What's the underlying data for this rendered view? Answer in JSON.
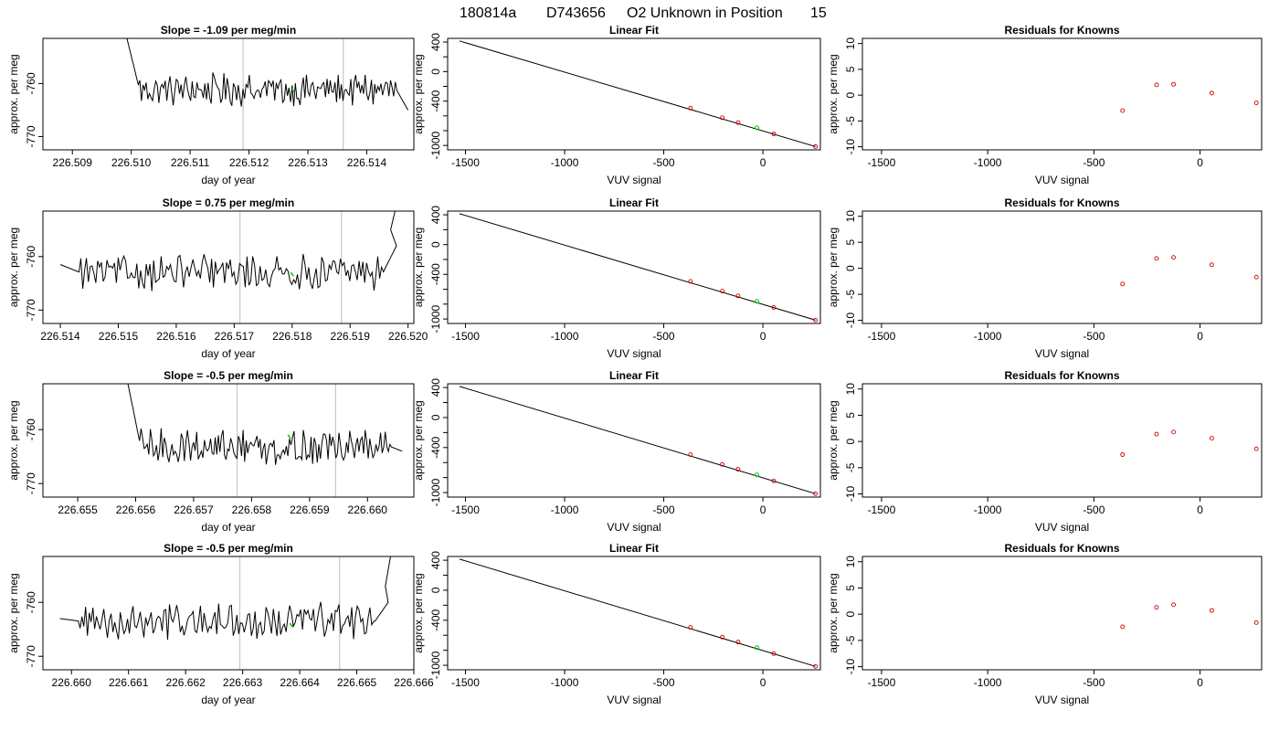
{
  "figure": {
    "suptitle_parts": [
      "180814a",
      "D743656",
      "O2 Unknown in Position",
      "15"
    ]
  },
  "colors": {
    "line": "#000000",
    "known_points": "#cc0000",
    "unknown_point": "#00cc00",
    "gate_lines": "#c8c8c8"
  },
  "chart_data": [
    {
      "type": "line",
      "row": 0,
      "panel": "time-series",
      "title": "Slope =  -1.09  per meg/min",
      "xlabel": "day of year",
      "ylabel": "approx. per meg",
      "xlim": [
        226.5085,
        226.5148
      ],
      "ylim": [
        -772.5,
        -751.5
      ],
      "xticks": [
        226.509,
        226.51,
        226.511,
        226.512,
        226.513,
        226.514
      ],
      "xtick_labels": [
        "226.509",
        "226.510",
        "226.511",
        "226.512",
        "226.513",
        "226.514"
      ],
      "yticks": [
        -770,
        -760
      ],
      "ytick_labels": [
        "-770",
        "-760"
      ],
      "vlines": [
        226.5119,
        226.5136
      ],
      "segment": {
        "x_start": 226.50985,
        "x_end": 226.5147,
        "y_start": -748,
        "y_end": -765
      },
      "mean_y": -761.2,
      "amplitude": 1.6,
      "unknown_marker": {
        "x": 226.51275,
        "y": -761.3
      }
    },
    {
      "type": "scatter",
      "row": 0,
      "panel": "linear-fit",
      "title": "Linear Fit",
      "xlabel": "VUV signal",
      "ylabel": "approx. per meg",
      "xlim": [
        -1590,
        290
      ],
      "ylim": [
        -1060,
        450
      ],
      "xticks": [
        -1500,
        -1000,
        -500,
        0
      ],
      "xtick_labels": [
        "-1500",
        "-1000",
        "-500",
        "0"
      ],
      "yticks": [
        400,
        0,
        -400,
        -1000
      ],
      "ytick_labels": [
        "400",
        "0",
        "-400",
        "-1000"
      ],
      "ytick_minor": [
        200,
        -200,
        -600,
        -800
      ],
      "fit_line": {
        "x": [
          -1530,
          265
        ],
        "y": [
          415,
          -1015
        ]
      },
      "knowns": {
        "x": [
          -365,
          -205,
          -125,
          55,
          265
        ],
        "y": [
          -495,
          -625,
          -690,
          -845,
          -1015
        ]
      },
      "unknown": {
        "x": -30,
        "y": -761
      }
    },
    {
      "type": "scatter",
      "row": 0,
      "panel": "residuals",
      "title": "Residuals for Knowns",
      "xlabel": "VUV signal",
      "ylabel": "approx. per meg",
      "xlim": [
        -1590,
        290
      ],
      "ylim": [
        -10.6,
        11
      ],
      "xticks": [
        -1500,
        -1000,
        -500,
        0
      ],
      "xtick_labels": [
        "-1500",
        "-1000",
        "-500",
        "0"
      ],
      "yticks": [
        10,
        5,
        0,
        -5,
        -10
      ],
      "ytick_labels": [
        "10",
        "5",
        "0",
        "-5",
        "-10"
      ],
      "knowns": {
        "x": [
          -365,
          -205,
          -125,
          55,
          265
        ],
        "y": [
          -3.0,
          2.0,
          2.1,
          0.4,
          -1.5
        ]
      }
    },
    {
      "type": "line",
      "row": 1,
      "panel": "time-series",
      "title": "Slope =  0.75  per meg/min",
      "xlabel": "day of year",
      "ylabel": "approx. per meg",
      "xlim": [
        226.5137,
        226.5201
      ],
      "ylim": [
        -772.5,
        -751.5
      ],
      "xticks": [
        226.514,
        226.515,
        226.516,
        226.517,
        226.518,
        226.519,
        226.52
      ],
      "xtick_labels": [
        "226.514",
        "226.515",
        "226.516",
        "226.517",
        "226.518",
        "226.519",
        "226.520"
      ],
      "yticks": [
        -770,
        -760
      ],
      "ytick_labels": [
        "-770",
        "-760"
      ],
      "vlines": [
        226.5171,
        226.51885
      ],
      "segment": {
        "x_start": 226.514,
        "x_end": 226.5198,
        "y_start": -761.5,
        "y_end": -758
      },
      "tail": {
        "x": [
          226.5197,
          226.51985
        ],
        "y": [
          -755,
          -748
        ]
      },
      "mean_y": -763.0,
      "amplitude": 1.7,
      "unknown_marker": {
        "x": 226.518,
        "y": -763.3
      }
    },
    {
      "type": "scatter",
      "row": 1,
      "panel": "linear-fit",
      "title": "Linear Fit",
      "xlabel": "VUV signal",
      "ylabel": "approx. per meg",
      "xlim": [
        -1590,
        290
      ],
      "ylim": [
        -1060,
        450
      ],
      "xticks": [
        -1500,
        -1000,
        -500,
        0
      ],
      "xtick_labels": [
        "-1500",
        "-1000",
        "-500",
        "0"
      ],
      "yticks": [
        400,
        0,
        -400,
        -1000
      ],
      "ytick_labels": [
        "400",
        "0",
        "-400",
        "-1000"
      ],
      "ytick_minor": [
        200,
        -200,
        -600,
        -800
      ],
      "fit_line": {
        "x": [
          -1530,
          265
        ],
        "y": [
          415,
          -1015
        ]
      },
      "knowns": {
        "x": [
          -365,
          -205,
          -125,
          55,
          265
        ],
        "y": [
          -495,
          -625,
          -690,
          -845,
          -1015
        ]
      },
      "unknown": {
        "x": -30,
        "y": -763
      }
    },
    {
      "type": "scatter",
      "row": 1,
      "panel": "residuals",
      "title": "Residuals for Knowns",
      "xlabel": "VUV signal",
      "ylabel": "approx. per meg",
      "xlim": [
        -1590,
        290
      ],
      "ylim": [
        -10.6,
        11
      ],
      "xticks": [
        -1500,
        -1000,
        -500,
        0
      ],
      "xtick_labels": [
        "-1500",
        "-1000",
        "-500",
        "0"
      ],
      "yticks": [
        10,
        5,
        0,
        -5,
        -10
      ],
      "ytick_labels": [
        "10",
        "5",
        "0",
        "-5",
        "-10"
      ],
      "knowns": {
        "x": [
          -365,
          -205,
          -125,
          55,
          265
        ],
        "y": [
          -3.0,
          1.9,
          2.1,
          0.7,
          -1.7
        ]
      }
    },
    {
      "type": "line",
      "row": 2,
      "panel": "time-series",
      "title": "Slope =  -0.5  per meg/min",
      "xlabel": "day of year",
      "ylabel": "approx. per meg",
      "xlim": [
        226.6544,
        226.6608
      ],
      "ylim": [
        -772.5,
        -751.5
      ],
      "xticks": [
        226.655,
        226.656,
        226.657,
        226.658,
        226.659,
        226.66
      ],
      "xtick_labels": [
        "226.655",
        "226.656",
        "226.657",
        "226.658",
        "226.659",
        "226.660"
      ],
      "yticks": [
        -770,
        -760
      ],
      "ytick_labels": [
        "-770",
        "-760"
      ],
      "vlines": [
        226.65775,
        226.65945
      ],
      "segment": {
        "x_start": 226.6558,
        "x_end": 226.6606,
        "y_start": -748,
        "y_end": -764
      },
      "mean_y": -763.2,
      "amplitude": 1.7,
      "unknown_marker": {
        "x": 226.65865,
        "y": -761.3
      }
    },
    {
      "type": "scatter",
      "row": 2,
      "panel": "linear-fit",
      "title": "Linear Fit",
      "xlabel": "VUV signal",
      "ylabel": "approx. per meg",
      "xlim": [
        -1590,
        290
      ],
      "ylim": [
        -1060,
        450
      ],
      "xticks": [
        -1500,
        -1000,
        -500,
        0
      ],
      "xtick_labels": [
        "-1500",
        "-1000",
        "-500",
        "0"
      ],
      "yticks": [
        400,
        0,
        -400,
        -1000
      ],
      "ytick_labels": [
        "400",
        "0",
        "-400",
        "-1000"
      ],
      "ytick_minor": [
        200,
        -200,
        -600,
        -800
      ],
      "fit_line": {
        "x": [
          -1530,
          265
        ],
        "y": [
          415,
          -1015
        ]
      },
      "knowns": {
        "x": [
          -365,
          -205,
          -125,
          55,
          265
        ],
        "y": [
          -495,
          -625,
          -690,
          -845,
          -1015
        ]
      },
      "unknown": {
        "x": -30,
        "y": -763
      }
    },
    {
      "type": "scatter",
      "row": 2,
      "panel": "residuals",
      "title": "Residuals for Knowns",
      "xlabel": "VUV signal",
      "ylabel": "approx. per meg",
      "xlim": [
        -1590,
        290
      ],
      "ylim": [
        -10.6,
        11
      ],
      "xticks": [
        -1500,
        -1000,
        -500,
        0
      ],
      "xtick_labels": [
        "-1500",
        "-1000",
        "-500",
        "0"
      ],
      "yticks": [
        10,
        5,
        0,
        -5,
        -10
      ],
      "ytick_labels": [
        "10",
        "5",
        "0",
        "-5",
        "-10"
      ],
      "knowns": {
        "x": [
          -365,
          -205,
          -125,
          55,
          265
        ],
        "y": [
          -2.5,
          1.4,
          1.8,
          0.6,
          -1.4
        ]
      }
    },
    {
      "type": "line",
      "row": 3,
      "panel": "time-series",
      "title": "Slope =  -0.5  per meg/min",
      "xlabel": "day of year",
      "ylabel": "approx. per meg",
      "xlim": [
        226.6595,
        226.666
      ],
      "ylim": [
        -772.5,
        -751.5
      ],
      "xticks": [
        226.66,
        226.661,
        226.662,
        226.663,
        226.664,
        226.665,
        226.666
      ],
      "xtick_labels": [
        "226.660",
        "226.661",
        "226.662",
        "226.663",
        "226.664",
        "226.665",
        "226.666"
      ],
      "yticks": [
        -770,
        -760
      ],
      "ytick_labels": [
        "-770",
        "-760"
      ],
      "vlines": [
        226.66295,
        226.6647
      ],
      "segment": {
        "x_start": 226.6598,
        "x_end": 226.66555,
        "y_start": -763,
        "y_end": -760
      },
      "tail": {
        "x": [
          226.6655,
          226.66565
        ],
        "y": [
          -757,
          -748
        ]
      },
      "mean_y": -763.5,
      "amplitude": 1.7,
      "unknown_marker": {
        "x": 226.66385,
        "y": -764.2
      }
    },
    {
      "type": "scatter",
      "row": 3,
      "panel": "linear-fit",
      "title": "Linear Fit",
      "xlabel": "VUV signal",
      "ylabel": "approx. per meg",
      "xlim": [
        -1590,
        290
      ],
      "ylim": [
        -1060,
        450
      ],
      "xticks": [
        -1500,
        -1000,
        -500,
        0
      ],
      "xtick_labels": [
        "-1500",
        "-1000",
        "-500",
        "0"
      ],
      "yticks": [
        400,
        0,
        -400,
        -1000
      ],
      "ytick_labels": [
        "400",
        "0",
        "-400",
        "-1000"
      ],
      "ytick_minor": [
        200,
        -200,
        -600,
        -800
      ],
      "fit_line": {
        "x": [
          -1530,
          265
        ],
        "y": [
          415,
          -1015
        ]
      },
      "knowns": {
        "x": [
          -365,
          -205,
          -125,
          55,
          265
        ],
        "y": [
          -495,
          -625,
          -690,
          -845,
          -1015
        ]
      },
      "unknown": {
        "x": -30,
        "y": -764
      }
    },
    {
      "type": "scatter",
      "row": 3,
      "panel": "residuals",
      "title": "Residuals for Knowns",
      "xlabel": "VUV signal",
      "ylabel": "approx. per meg",
      "xlim": [
        -1590,
        290
      ],
      "ylim": [
        -10.6,
        11
      ],
      "xticks": [
        -1500,
        -1000,
        -500,
        0
      ],
      "xtick_labels": [
        "-1500",
        "-1000",
        "-500",
        "0"
      ],
      "yticks": [
        10,
        5,
        0,
        -5,
        -10
      ],
      "ytick_labels": [
        "10",
        "5",
        "0",
        "-5",
        "-10"
      ],
      "knowns": {
        "x": [
          -365,
          -205,
          -125,
          55,
          265
        ],
        "y": [
          -2.4,
          1.3,
          1.8,
          0.7,
          -1.6
        ]
      }
    }
  ]
}
